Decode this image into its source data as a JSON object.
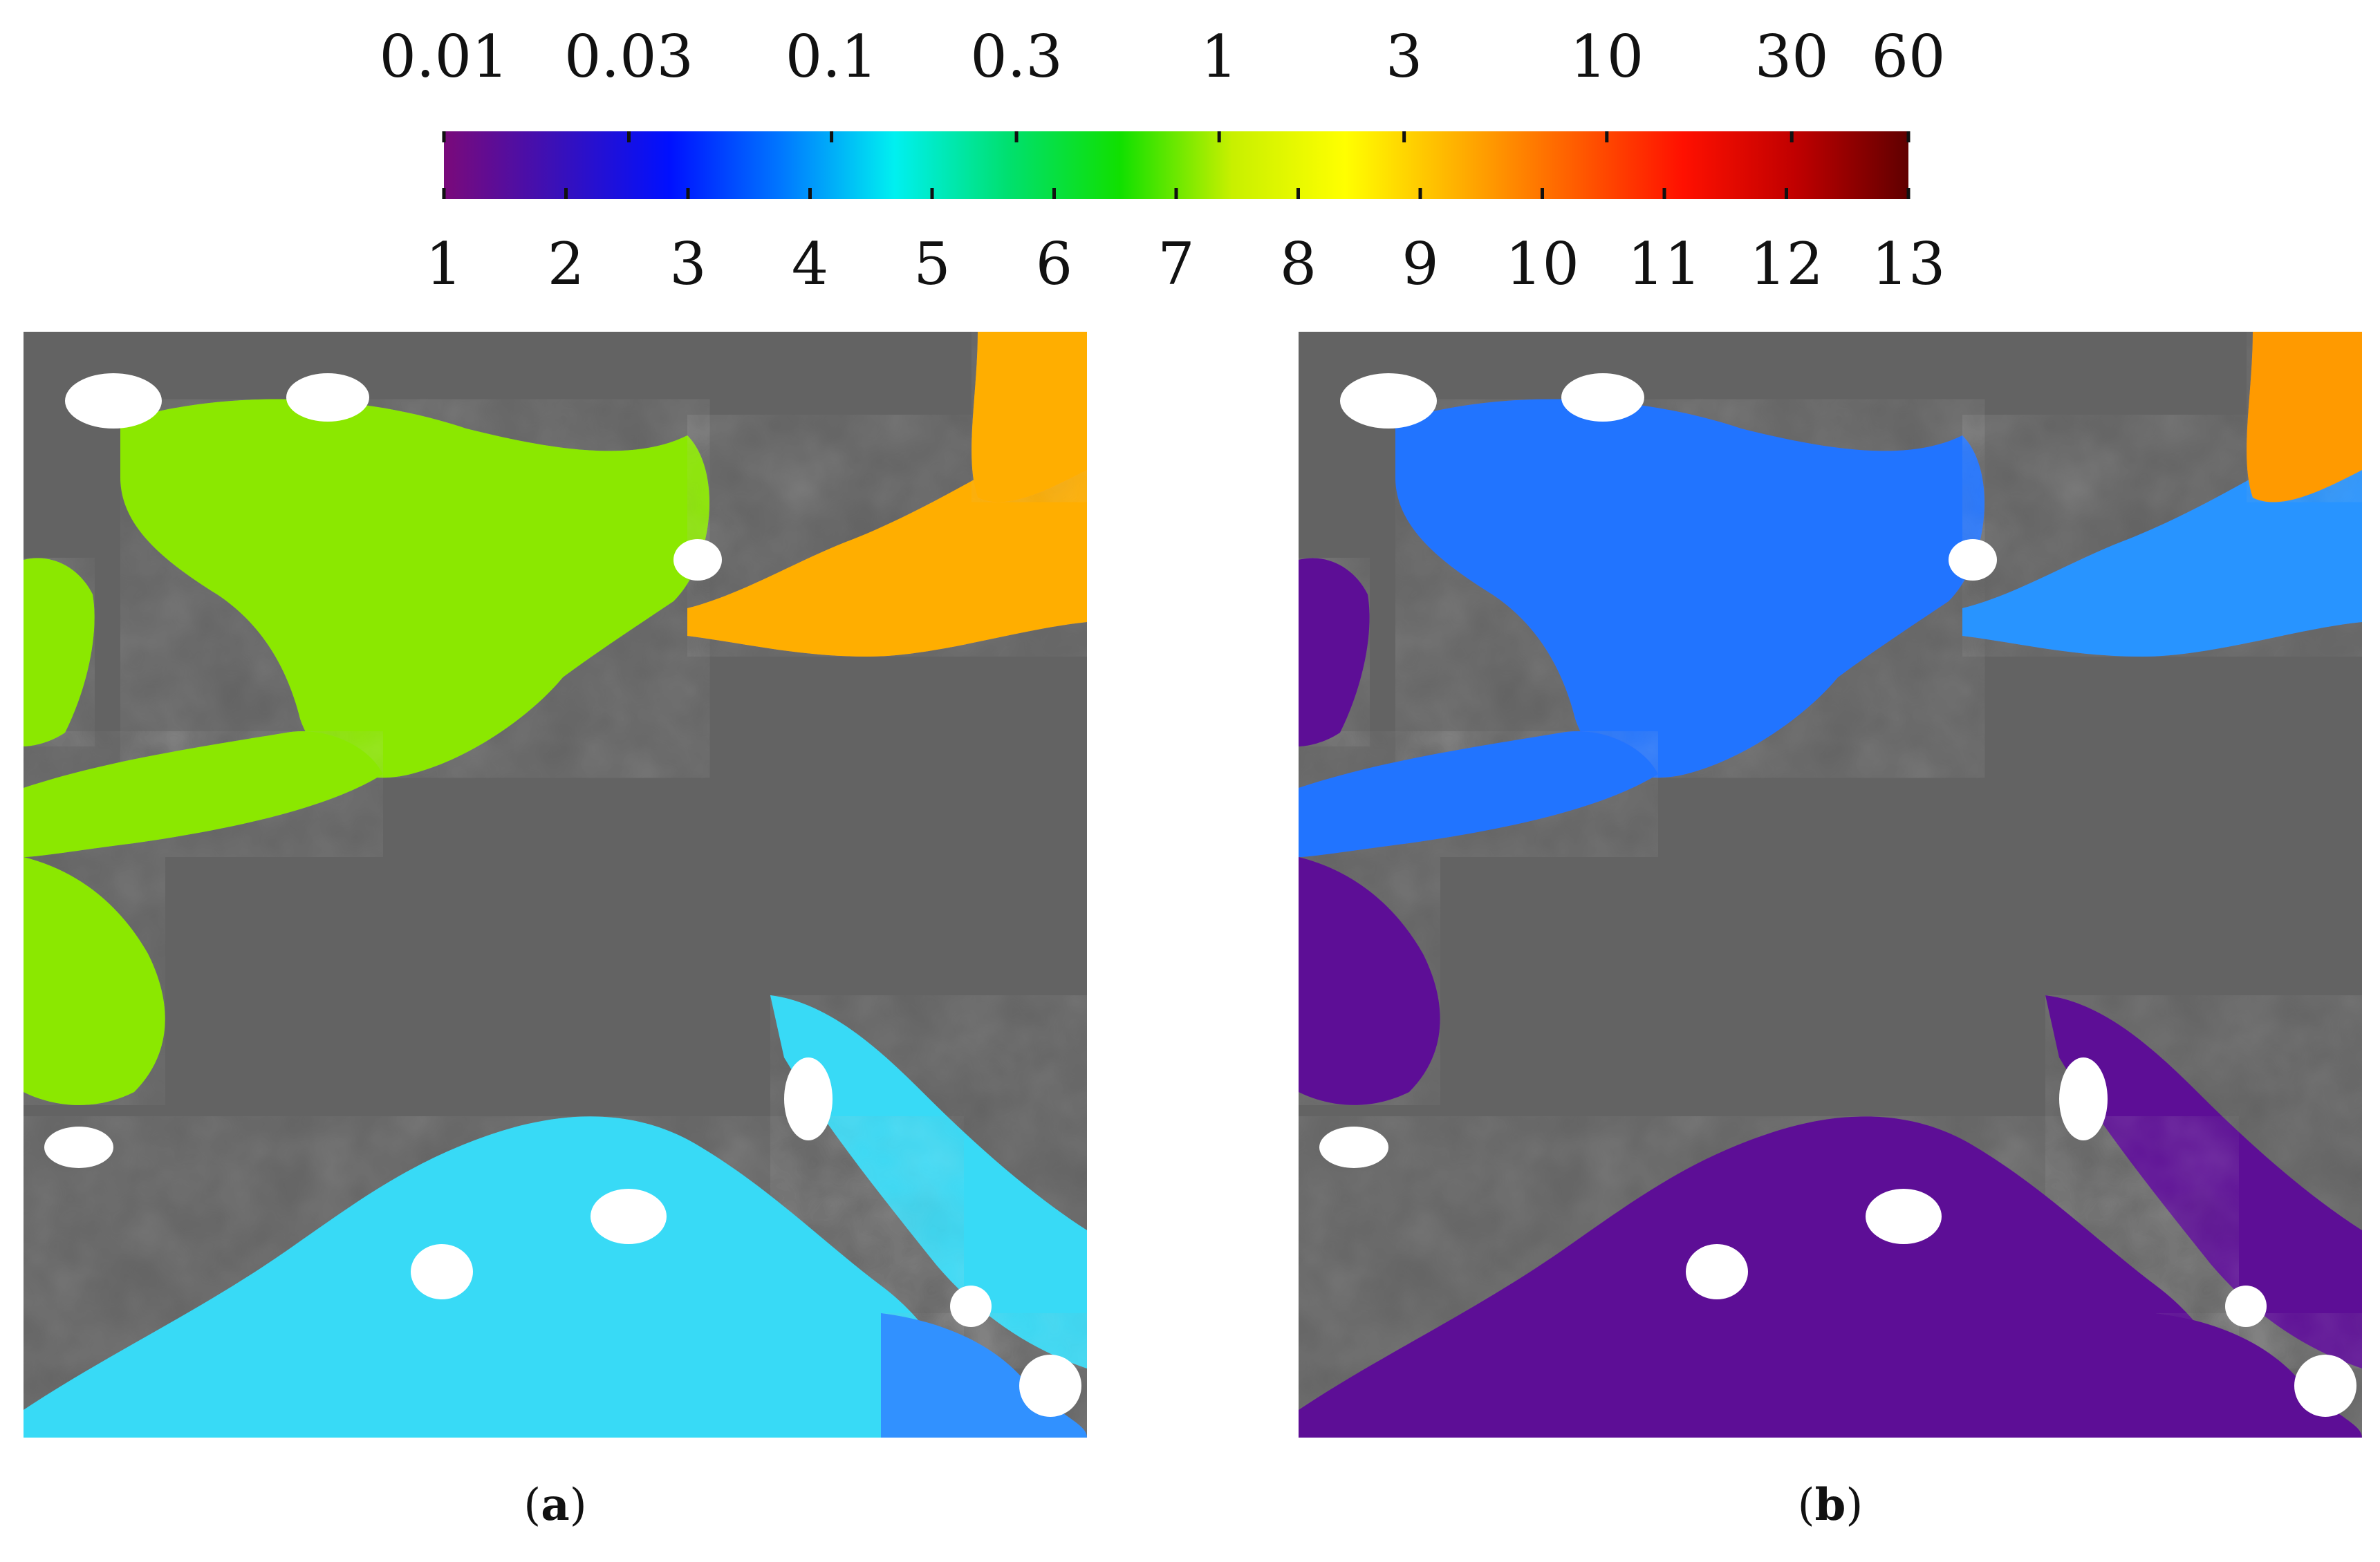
{
  "colorbar": {
    "top_ticks": [
      "0.01",
      "0.03",
      "0.1",
      "0.3",
      "1",
      "3",
      "10",
      "30",
      "60"
    ],
    "bottom_ticks": [
      "1",
      "2",
      "3",
      "4",
      "5",
      "6",
      "7",
      "8",
      "9",
      "10",
      "11",
      "12",
      "13"
    ],
    "top_range": [
      0.01,
      60
    ],
    "top_scale": "log",
    "bottom_range": [
      1,
      13
    ],
    "colors": [
      "#7a0a7a",
      "#3a10b8",
      "#0010ff",
      "#0078ff",
      "#00f0f0",
      "#00e070",
      "#10e000",
      "#c8f000",
      "#ffff00",
      "#ffb000",
      "#ff6000",
      "#ff1000",
      "#c00000",
      "#600000"
    ]
  },
  "panels": [
    {
      "caption_open": "(",
      "caption_letter": "a",
      "caption_close": ")",
      "style": "chlorophyll"
    },
    {
      "caption_open": "(",
      "caption_letter": "b",
      "caption_close": ")",
      "style": "classes"
    }
  ],
  "map_colors": {
    "land": "#636363",
    "cloud": "#ffffff"
  }
}
